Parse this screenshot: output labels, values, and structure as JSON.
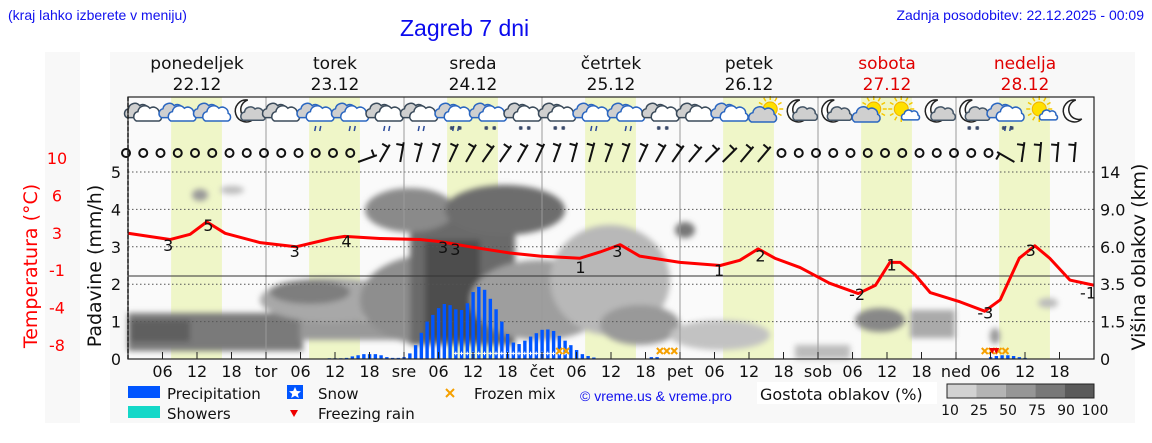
{
  "header": {
    "hint": "(kraj lahko izberete v meniju)",
    "title": "Zagreb 7 dni",
    "updated": "Zadnja posodobitev: 22.12.2025 - 00:09"
  },
  "colors": {
    "temperature": "#ff0000",
    "precipitation": "#0055ff",
    "showers": "#14d8c8",
    "daylight": "#eff6c8",
    "weekend": "#e00000",
    "frozen_mix": "#f5a000",
    "freezing_rain": "#ee0000",
    "link": "#1010ee"
  },
  "days": [
    {
      "name": "ponedeljek",
      "date": "22.12",
      "weekend": false
    },
    {
      "name": "torek",
      "date": "23.12",
      "weekend": false
    },
    {
      "name": "sreda",
      "date": "24.12",
      "weekend": false
    },
    {
      "name": "četrtek",
      "date": "25.12",
      "weekend": false
    },
    {
      "name": "petek",
      "date": "26.12",
      "weekend": false
    },
    {
      "name": "sobota",
      "date": "27.12",
      "weekend": true
    },
    {
      "name": "nedelja",
      "date": "28.12",
      "weekend": true
    }
  ],
  "weather_icons": [
    "overcast",
    "overcast-day",
    "overcast-day",
    "moon-cloud",
    "overcast",
    "rain-day",
    "rain-day",
    "rain",
    "rain",
    "sleet-day",
    "snow-day",
    "snow",
    "snow",
    "rain-day",
    "rain-day",
    "snow",
    "overcast",
    "overcast-day",
    "sun-cloud",
    "moon-cloud",
    "moon-cloud",
    "sun-cloud",
    "sun-small-cloud",
    "moon-cloud",
    "moon-cloud-snow",
    "sleet-day",
    "sun-small-cloud",
    "moon"
  ],
  "wind": [
    "calm",
    "calm",
    "calm",
    "calm",
    "calm",
    "calm",
    "calm",
    "calm",
    "calm",
    "calm",
    "calm",
    "calm",
    "calm",
    "calm",
    70,
    30,
    10,
    15,
    20,
    25,
    30,
    35,
    35,
    30,
    25,
    20,
    15,
    15,
    20,
    20,
    25,
    30,
    35,
    40,
    45,
    45,
    40,
    40,
    "calm",
    "calm",
    "calm",
    "calm",
    "calm",
    "calm",
    "calm",
    "calm",
    "calm",
    "calm",
    "calm",
    "calm",
    "calm",
    300,
    8,
    5,
    5,
    5
  ],
  "chart_data": {
    "type": "meteogram",
    "x_unit": "hours from 22.12 00:00",
    "x_tick_labels": [
      "06",
      "12",
      "18",
      "tor",
      "06",
      "12",
      "18",
      "sre",
      "06",
      "12",
      "18",
      "čet",
      "06",
      "12",
      "18",
      "pet",
      "06",
      "12",
      "18",
      "sob",
      "06",
      "12",
      "18",
      "ned",
      "06",
      "12",
      "18"
    ],
    "left_axis": {
      "label": "Padavine (mm/h)",
      "ticks": [
        "0",
        "1",
        "2",
        "3",
        "4",
        "5"
      ],
      "range": [
        0,
        5
      ]
    },
    "temp_axis": {
      "label": "Temperatura (°C)",
      "ticks": [
        "-8",
        "-4",
        "-1",
        "3",
        "6",
        "10"
      ],
      "range": [
        -8,
        10
      ]
    },
    "right_axis": {
      "label": "Višina oblakov (km)",
      "ticks": [
        "0",
        "1.5",
        "3.5",
        "6.0",
        "9.0",
        "14"
      ]
    },
    "grid": true,
    "temperature": {
      "hours": [
        0,
        7.3,
        10.8,
        13.7,
        16.9,
        23,
        29.2,
        35.3,
        37.7,
        43.8,
        50.8,
        54.3,
        59.5,
        66.4,
        71.7,
        78.6,
        82.1,
        85.6,
        89,
        96,
        103,
        106.4,
        109.6,
        112.5,
        116.9,
        122,
        127,
        130,
        132.5,
        134.3,
        136.9,
        139.5,
        144.7,
        149,
        151.7,
        155,
        157.7,
        160.3,
        163.8,
        168
      ],
      "values": [
        4.1,
        3.5,
        4.0,
        5.2,
        4.1,
        3.2,
        2.8,
        3.6,
        3.8,
        3.6,
        3.5,
        3.3,
        2.8,
        2.2,
        1.9,
        1.7,
        2.3,
        3.0,
        1.9,
        1.3,
        1.0,
        1.5,
        2.6,
        1.7,
        0.8,
        -0.7,
        -1.7,
        -0.9,
        1.3,
        1.3,
        0.1,
        -1.6,
        -2.5,
        -3.4,
        -2.3,
        1.7,
        2.9,
        1.7,
        -0.4,
        -0.9
      ]
    },
    "temperature_labels": [
      {
        "h": 7,
        "t": 2.4,
        "text": "3"
      },
      {
        "h": 14,
        "t": 4.3,
        "text": "5"
      },
      {
        "h": 29,
        "t": 1.8,
        "text": "3"
      },
      {
        "h": 38,
        "t": 2.8,
        "text": "4"
      },
      {
        "h": 54.8,
        "t": 2.2,
        "text": "3"
      },
      {
        "h": 56,
        "t": 2.0,
        "text": "3"
      },
      {
        "h": 78.7,
        "t": 0.3,
        "text": "1"
      },
      {
        "h": 85.1,
        "t": 1.8,
        "text": "3"
      },
      {
        "h": 102.8,
        "t": 0.0,
        "text": "1"
      },
      {
        "h": 110,
        "t": 1.4,
        "text": "2"
      },
      {
        "h": 126.8,
        "t": -2.3,
        "text": "-2"
      },
      {
        "h": 132.8,
        "t": 0.5,
        "text": "1"
      },
      {
        "h": 149.1,
        "t": -4.1,
        "text": "-3"
      },
      {
        "h": 157,
        "t": 1.9,
        "text": "3"
      },
      {
        "h": 167.9,
        "t": -2.2,
        "text": "-1"
      }
    ],
    "precipitation": {
      "hours": [
        35,
        36,
        37,
        38,
        39,
        40,
        41,
        42,
        43,
        44,
        45,
        46,
        47,
        48,
        49,
        50,
        51,
        52,
        53,
        54,
        55,
        56,
        57,
        58,
        59,
        60,
        61,
        62,
        63,
        64,
        65,
        66,
        67,
        68,
        69,
        70,
        71,
        72,
        73,
        74,
        75,
        76,
        77,
        78,
        79,
        80,
        81,
        91,
        92,
        150,
        151,
        152,
        153,
        154,
        155,
        156
      ],
      "values": [
        0.02,
        0.02,
        0.02,
        0.03,
        0.07,
        0.1,
        0.13,
        0.13,
        0.13,
        0.1,
        0.05,
        0.03,
        0.03,
        0.05,
        0.15,
        0.37,
        0.7,
        1.0,
        1.18,
        1.36,
        1.47,
        1.44,
        1.33,
        1.31,
        1.49,
        1.79,
        1.93,
        1.85,
        1.61,
        1.33,
        1.0,
        0.67,
        0.44,
        0.4,
        0.49,
        0.6,
        0.69,
        0.78,
        0.79,
        0.75,
        0.62,
        0.49,
        0.37,
        0.24,
        0.13,
        0.08,
        0.04,
        0.05,
        0.05,
        0.05,
        0.08,
        0.1,
        0.1,
        0.08,
        0.05,
        0.03
      ]
    },
    "snow_hours": [
      57,
      76
    ],
    "frozen_mix_hours": [
      75,
      76.2,
      92.5,
      93.7,
      95,
      149,
      150.2,
      151.4,
      152.6
    ],
    "freezing_rain_hours": [
      150.3,
      151
    ],
    "daylight": [
      "07:30",
      "16:20"
    ],
    "freezing_level_temp": 0
  },
  "legend": {
    "precipitation": "Precipitation",
    "showers": "Showers",
    "snow": "Snow",
    "freezing_rain": "Freezing rain",
    "frozen_mix": "Frozen mix",
    "copyright": "© vreme.us & vreme.pro",
    "cloud_density_title": "Gostota oblakov (%)",
    "cloud_density_levels": [
      "10",
      "25",
      "50",
      "75",
      "90",
      "100"
    ],
    "cloud_density_shades": [
      "#d2d2d2",
      "#b4b4b4",
      "#969696",
      "#787878",
      "#5a5a5a"
    ]
  }
}
